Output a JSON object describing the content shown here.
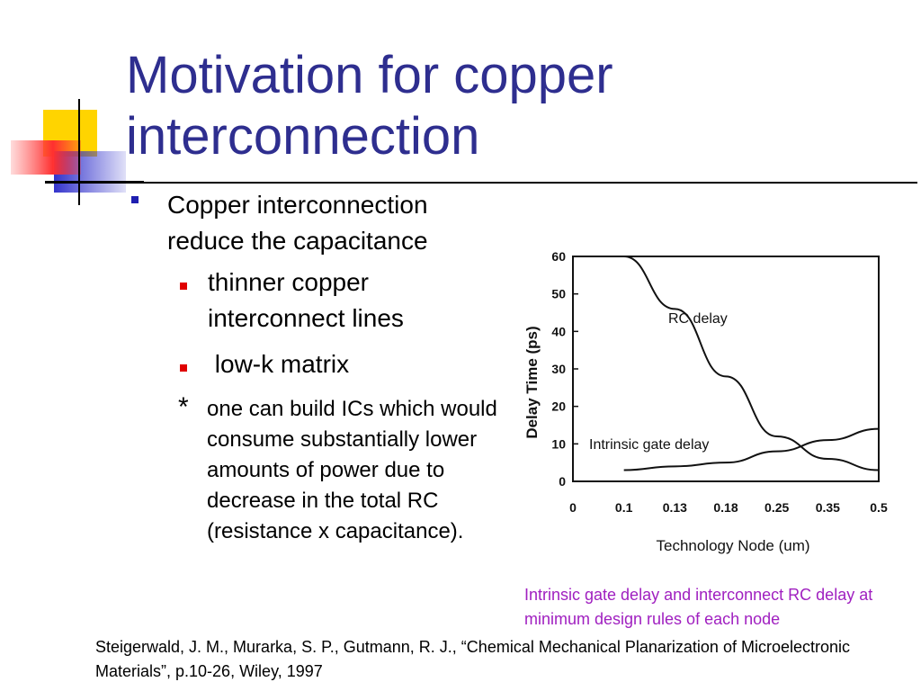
{
  "slide": {
    "title_line1": "Motivation for copper",
    "title_line2": "interconnection",
    "bullet1": "Copper interconnection reduce the capacitance",
    "sub_bullets": [
      "thinner copper interconnect lines",
      " low-k matrix"
    ],
    "note_star": "*",
    "note_first": "one can build ICs which",
    "note_rest": "would consume substantially lower amounts of power due to decrease in the total RC (resistance x capacitance).",
    "caption": "Intrinsic gate delay and interconnect RC delay at minimum design rules of each node",
    "reference": "Steigerwald, J. M., Murarka, S. P., Gutmann, R. J., “Chemical Mechanical Planarization of Microelectronic Materials”, p.10-26, Wiley, 1997",
    "colors": {
      "title": "#2e2e8f",
      "caption": "#a020c0",
      "bullet_l1": "#1f1fb0",
      "bullet_l2": "#e00000"
    }
  },
  "chart_data": {
    "type": "line",
    "xlabel": "Technology Node (um)",
    "ylabel": "Delay Time (ps)",
    "x_ticks": [
      "0",
      "0.1",
      "0.13",
      "0.18",
      "0.25",
      "0.35",
      "0.5"
    ],
    "y_ticks": [
      "0",
      "10",
      "20",
      "30",
      "40",
      "50",
      "60"
    ],
    "ylim": [
      0,
      60
    ],
    "grid": false,
    "annotations": [
      "RC delay",
      "Intrinsic gate delay"
    ],
    "series": [
      {
        "label": "RC delay",
        "x": [
          "0.1",
          "0.13",
          "0.18",
          "0.25",
          "0.35",
          "0.5"
        ],
        "values": [
          60,
          46,
          28,
          12,
          6,
          3
        ]
      },
      {
        "label": "Intrinsic gate delay",
        "x": [
          "0.1",
          "0.13",
          "0.18",
          "0.25",
          "0.35",
          "0.5"
        ],
        "values": [
          3,
          4,
          5,
          8,
          11,
          14
        ]
      }
    ]
  }
}
